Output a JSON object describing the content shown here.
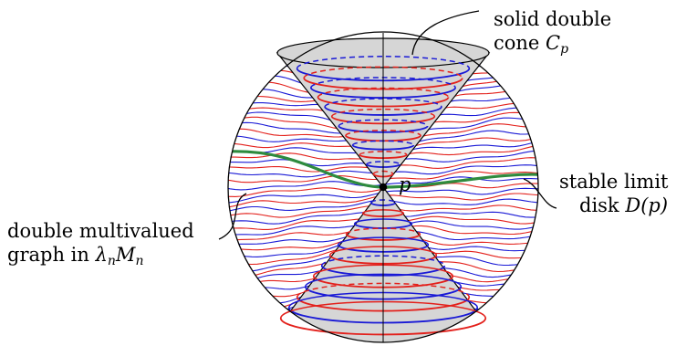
{
  "labels": {
    "cone_line1": "solid double",
    "cone_line2_word": "cone",
    "cone_symbol": "C",
    "cone_sub": "p",
    "point": "p",
    "disk_line1": "stable limit",
    "disk_line2_word": "disk",
    "disk_symbol": "D(p)",
    "graph_line1": "double multivalued",
    "graph_line2_word": "graph in",
    "graph_lambda": "λ",
    "graph_lambda_sub": "n",
    "graph_M": "M",
    "graph_M_sub": "n"
  },
  "colors": {
    "red": "#e3201b",
    "blue": "#1a1ad6",
    "green": "#2e8b3e",
    "cone_fill": "#d6d6d6",
    "outline": "#000000"
  }
}
